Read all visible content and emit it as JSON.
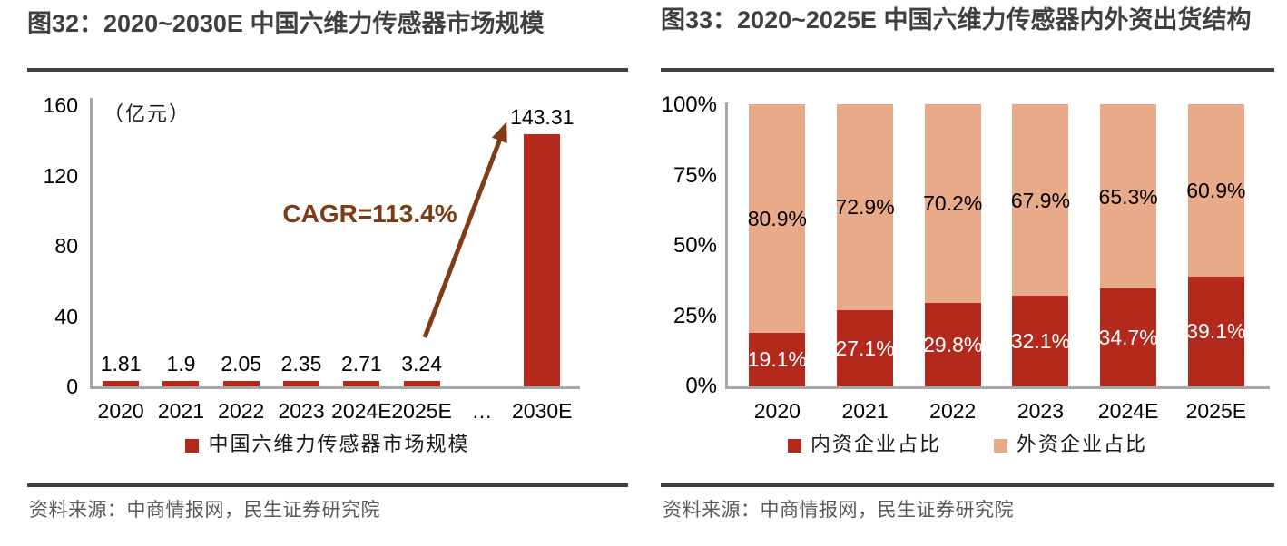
{
  "chart_data": [
    {
      "type": "bar",
      "figure_label": "图32",
      "title": "图32：2020~2030E 中国六维力传感器市场规模",
      "unit_label": "（亿元）",
      "categories": [
        "2020",
        "2021",
        "2022",
        "2023",
        "2024E",
        "2025E",
        "…",
        "2030E"
      ],
      "values": [
        1.81,
        1.9,
        2.05,
        2.35,
        2.71,
        3.24,
        null,
        143.31
      ],
      "value_labels": [
        "1.81",
        "1.9",
        "2.05",
        "2.35",
        "2.71",
        "3.24",
        "",
        "143.31"
      ],
      "ylim": [
        0,
        160
      ],
      "yticks": [
        0,
        40,
        80,
        120,
        160
      ],
      "grid": false,
      "annotation": "CAGR=113.4%",
      "annotation_color": "#7e3c16",
      "bar_color": "#b32a1c",
      "axis_color": "#a6a6a6",
      "legend_position": "bottom",
      "legend": [
        {
          "label": "中国六维力传感器市场规模",
          "color": "#b32a1c"
        }
      ],
      "source": "资料来源：中商情报网，民生证券研究院"
    },
    {
      "type": "stacked-bar-100",
      "figure_label": "图33",
      "title": "图33：2020~2025E 中国六维力传感器内外资出货结构",
      "categories": [
        "2020",
        "2021",
        "2022",
        "2023",
        "2024E",
        "2025E"
      ],
      "series": [
        {
          "name": "内资企业占比",
          "color": "#b32a1c",
          "label_color": "#ffffff",
          "values": [
            19.1,
            27.1,
            29.8,
            32.1,
            34.7,
            39.1
          ],
          "labels": [
            "19.1%",
            "27.1%",
            "29.8%",
            "32.1%",
            "34.7%",
            "39.1%"
          ]
        },
        {
          "name": "外资企业占比",
          "color": "#e9aa8a",
          "label_color": "#000000",
          "values": [
            80.9,
            72.9,
            70.2,
            67.9,
            65.3,
            60.9
          ],
          "labels": [
            "80.9%",
            "72.9%",
            "70.2%",
            "67.9%",
            "65.3%",
            "60.9%"
          ]
        }
      ],
      "ylim": [
        0,
        100
      ],
      "yticks": [
        "0%",
        "25%",
        "50%",
        "75%",
        "100%"
      ],
      "grid": false,
      "axis_color": "#a6a6a6",
      "legend_position": "bottom",
      "legend": [
        {
          "label": "内资企业占比",
          "color": "#b32a1c"
        },
        {
          "label": "外资企业占比",
          "color": "#e9aa8a"
        }
      ],
      "source": "资料来源：中商情报网，民生证券研究院"
    }
  ]
}
